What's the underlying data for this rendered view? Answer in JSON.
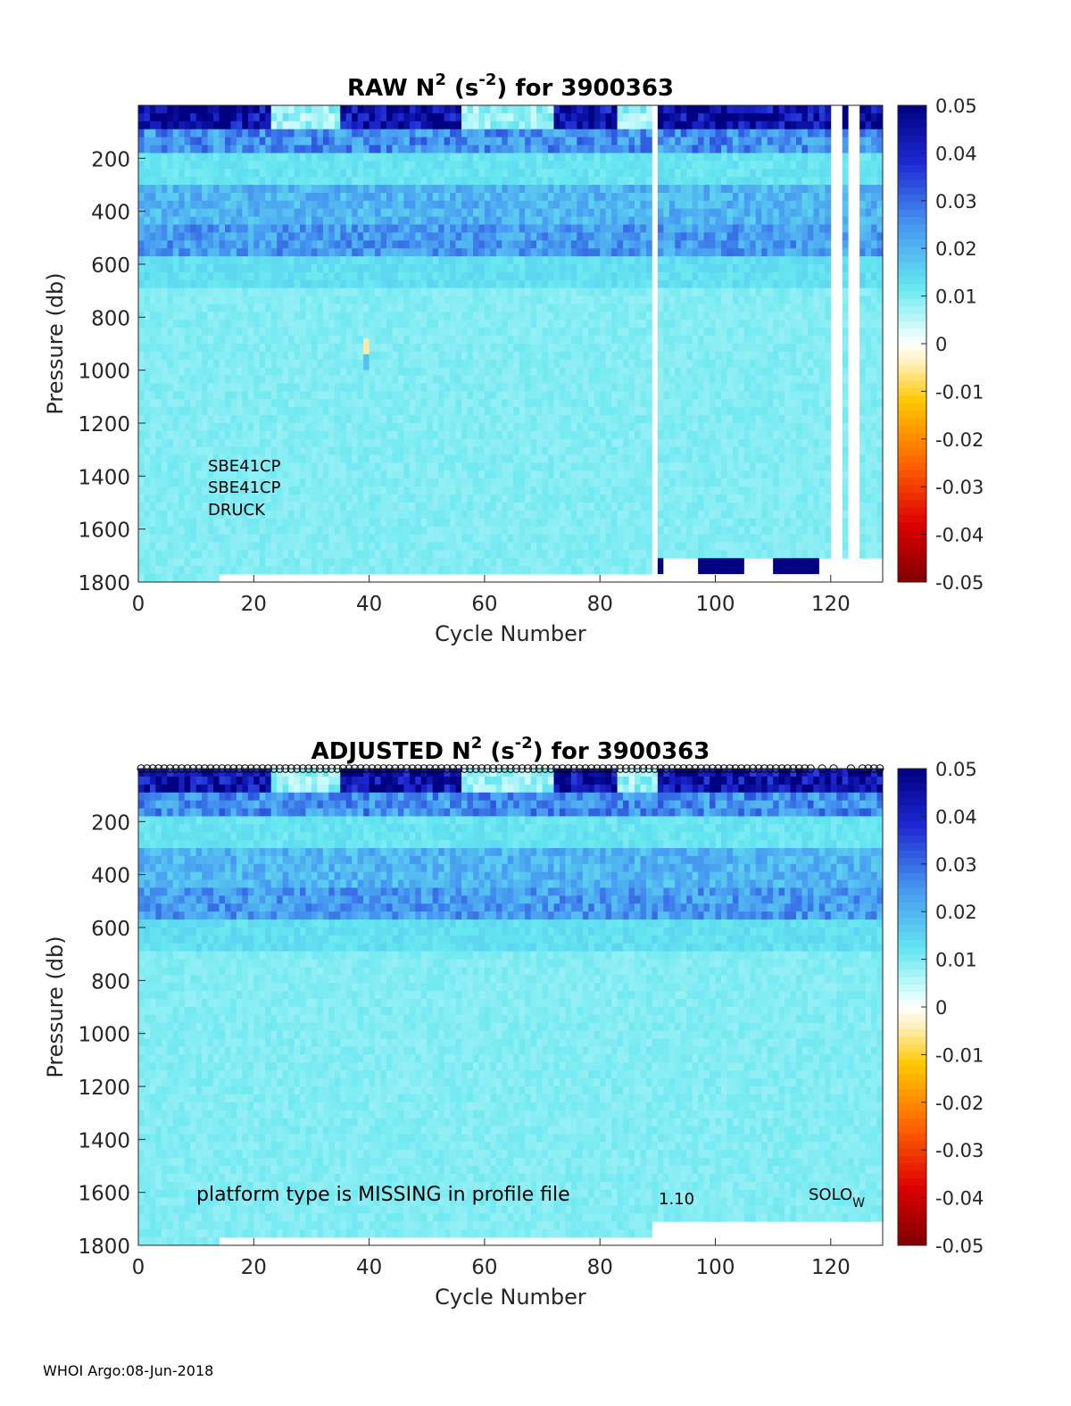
{
  "footer": "WHOI Argo:08-Jun-2018",
  "chart_data": [
    {
      "type": "heatmap",
      "title": {
        "prefix": "RAW N",
        "sup1": "2",
        "mid": " (s",
        "sup2": "-2",
        "suffix": ") for 3900363"
      },
      "xlabel": "Cycle Number",
      "ylabel": "Pressure (db)",
      "xlim": [
        0,
        129
      ],
      "ylim": [
        1800,
        0
      ],
      "xticks": [
        0,
        20,
        40,
        60,
        80,
        100,
        120
      ],
      "yticks": [
        200,
        400,
        600,
        800,
        1000,
        1200,
        1400,
        1600,
        1800
      ],
      "colorbar": {
        "min": -0.05,
        "max": 0.05,
        "colormap": "jet-white-center",
        "ticks": [
          0.05,
          0.04,
          0.03,
          0.02,
          0.01,
          0,
          -0.01,
          -0.02,
          -0.03,
          -0.04,
          -0.05
        ]
      },
      "annotations": [
        "SBE41CP",
        "SBE41CP",
        "DRUCK"
      ],
      "missing_cycles": [
        89,
        120,
        121,
        123,
        124
      ],
      "anomaly": {
        "cycle": 39.5,
        "p_top": 880,
        "p_bottom": 1000,
        "values": [
          -0.005,
          0.018
        ]
      },
      "deep_high_segments": [
        [
          90,
          91
        ],
        [
          97,
          105
        ],
        [
          110,
          118
        ]
      ]
    },
    {
      "type": "heatmap",
      "title": {
        "prefix": "ADJUSTED N",
        "sup1": "2",
        "mid": " (s",
        "sup2": "-2",
        "suffix": ") for 3900363"
      },
      "xlabel": "Cycle Number",
      "ylabel": "Pressure (db)",
      "xlim": [
        0,
        129
      ],
      "ylim": [
        1800,
        0
      ],
      "xticks": [
        0,
        20,
        40,
        60,
        80,
        100,
        120
      ],
      "yticks": [
        200,
        400,
        600,
        800,
        1000,
        1200,
        1400,
        1600,
        1800
      ],
      "colorbar": {
        "min": -0.05,
        "max": 0.05,
        "colormap": "jet-white-center",
        "ticks": [
          0.05,
          0.04,
          0.03,
          0.02,
          0.01,
          0,
          -0.01,
          -0.02,
          -0.03,
          -0.04,
          -0.05
        ]
      },
      "annotations": [
        "platform type is MISSING in profile file",
        "1.10",
        "SOLO",
        "W"
      ],
      "top_markers": true
    }
  ]
}
